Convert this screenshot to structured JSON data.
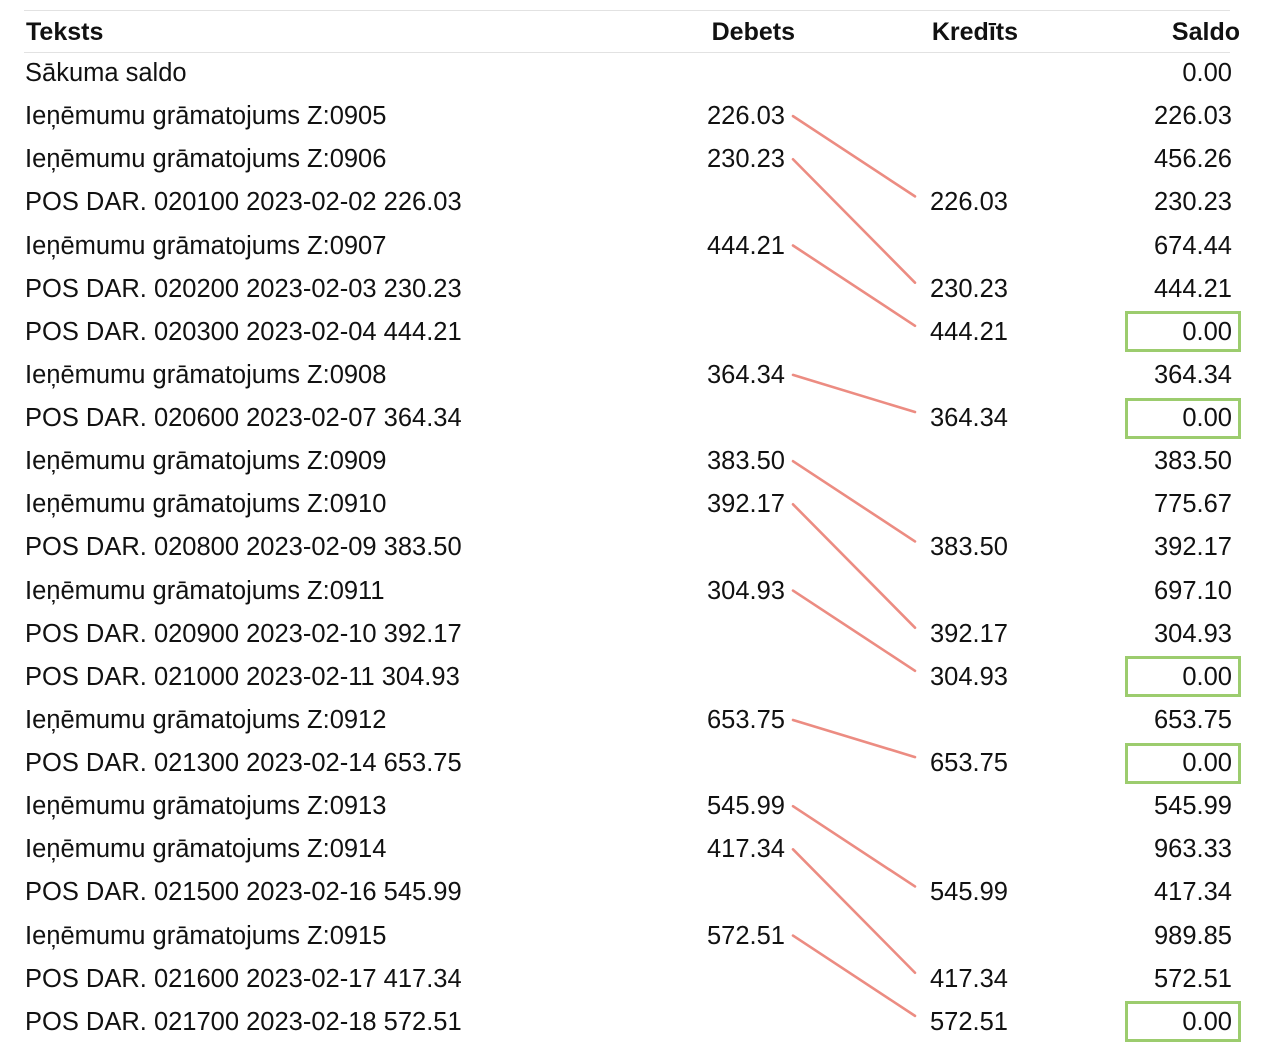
{
  "ledger": {
    "columns": {
      "text": "Teksts",
      "debit": "Debets",
      "credit": "Kredīts",
      "balance": "Saldo"
    },
    "colors": {
      "match_line": "#ec8c82",
      "zero_box": "#9ccc6e"
    },
    "rows": [
      {
        "text": "Sākuma saldo",
        "debit": "",
        "credit": "",
        "balance": "0.00",
        "zero_highlight": false
      },
      {
        "text": "Ieņēmumu grāmatojums Z:0905",
        "debit": "226.03",
        "credit": "",
        "balance": "226.03",
        "zero_highlight": false
      },
      {
        "text": "Ieņēmumu grāmatojums Z:0906",
        "debit": "230.23",
        "credit": "",
        "balance": "456.26",
        "zero_highlight": false
      },
      {
        "text": "POS DAR. 020100 2023-02-02 226.03",
        "debit": "",
        "credit": "226.03",
        "balance": "230.23",
        "zero_highlight": false
      },
      {
        "text": "Ieņēmumu grāmatojums Z:0907",
        "debit": "444.21",
        "credit": "",
        "balance": "674.44",
        "zero_highlight": false
      },
      {
        "text": "POS DAR. 020200 2023-02-03 230.23",
        "debit": "",
        "credit": "230.23",
        "balance": "444.21",
        "zero_highlight": false
      },
      {
        "text": "POS DAR. 020300 2023-02-04 444.21",
        "debit": "",
        "credit": "444.21",
        "balance": "0.00",
        "zero_highlight": true
      },
      {
        "text": "Ieņēmumu grāmatojums Z:0908",
        "debit": "364.34",
        "credit": "",
        "balance": "364.34",
        "zero_highlight": false
      },
      {
        "text": "POS DAR. 020600 2023-02-07 364.34",
        "debit": "",
        "credit": "364.34",
        "balance": "0.00",
        "zero_highlight": true
      },
      {
        "text": "Ieņēmumu grāmatojums Z:0909",
        "debit": "383.50",
        "credit": "",
        "balance": "383.50",
        "zero_highlight": false
      },
      {
        "text": "Ieņēmumu grāmatojums Z:0910",
        "debit": "392.17",
        "credit": "",
        "balance": "775.67",
        "zero_highlight": false
      },
      {
        "text": "POS DAR. 020800 2023-02-09 383.50",
        "debit": "",
        "credit": "383.50",
        "balance": "392.17",
        "zero_highlight": false
      },
      {
        "text": "Ieņēmumu grāmatojums Z:0911",
        "debit": "304.93",
        "credit": "",
        "balance": "697.10",
        "zero_highlight": false
      },
      {
        "text": "POS DAR. 020900 2023-02-10 392.17",
        "debit": "",
        "credit": "392.17",
        "balance": "304.93",
        "zero_highlight": false
      },
      {
        "text": "POS DAR. 021000 2023-02-11 304.93",
        "debit": "",
        "credit": "304.93",
        "balance": "0.00",
        "zero_highlight": true
      },
      {
        "text": "Ieņēmumu grāmatojums Z:0912",
        "debit": "653.75",
        "credit": "",
        "balance": "653.75",
        "zero_highlight": false
      },
      {
        "text": "POS DAR. 021300 2023-02-14 653.75",
        "debit": "",
        "credit": "653.75",
        "balance": "0.00",
        "zero_highlight": true
      },
      {
        "text": "Ieņēmumu grāmatojums Z:0913",
        "debit": "545.99",
        "credit": "",
        "balance": "545.99",
        "zero_highlight": false
      },
      {
        "text": "Ieņēmumu grāmatojums Z:0914",
        "debit": "417.34",
        "credit": "",
        "balance": "963.33",
        "zero_highlight": false
      },
      {
        "text": "POS DAR. 021500 2023-02-16 545.99",
        "debit": "",
        "credit": "545.99",
        "balance": "417.34",
        "zero_highlight": false
      },
      {
        "text": "Ieņēmumu grāmatojums Z:0915",
        "debit": "572.51",
        "credit": "",
        "balance": "989.85",
        "zero_highlight": false
      },
      {
        "text": "POS DAR. 021600 2023-02-17 417.34",
        "debit": "",
        "credit": "417.34",
        "balance": "572.51",
        "zero_highlight": false
      },
      {
        "text": "POS DAR. 021700 2023-02-18 572.51",
        "debit": "",
        "credit": "572.51",
        "balance": "0.00",
        "zero_highlight": true
      }
    ],
    "matches": [
      {
        "debit_row": 1,
        "credit_row": 3
      },
      {
        "debit_row": 2,
        "credit_row": 5
      },
      {
        "debit_row": 4,
        "credit_row": 6
      },
      {
        "debit_row": 7,
        "credit_row": 8
      },
      {
        "debit_row": 9,
        "credit_row": 11
      },
      {
        "debit_row": 10,
        "credit_row": 13
      },
      {
        "debit_row": 12,
        "credit_row": 14
      },
      {
        "debit_row": 15,
        "credit_row": 16
      },
      {
        "debit_row": 17,
        "credit_row": 19
      },
      {
        "debit_row": 18,
        "credit_row": 21
      },
      {
        "debit_row": 20,
        "credit_row": 22
      }
    ]
  }
}
